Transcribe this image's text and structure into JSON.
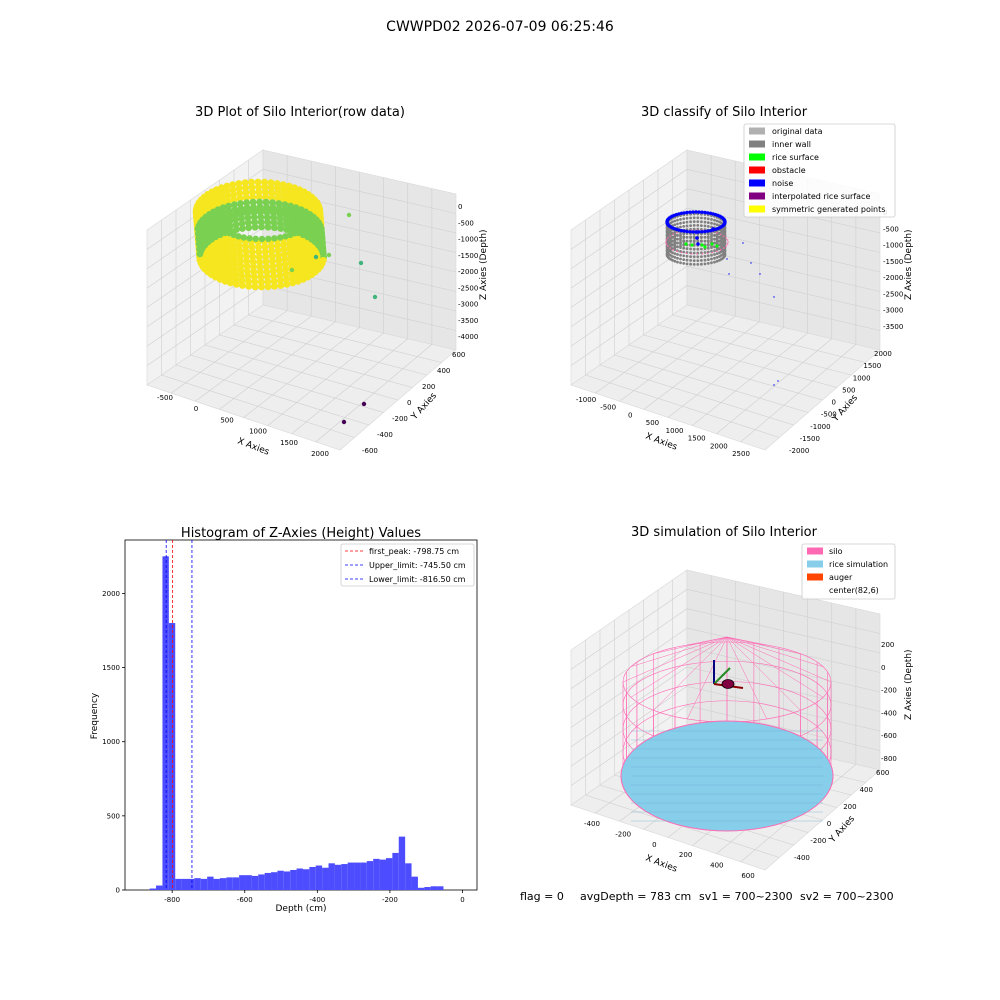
{
  "figure_title": "CWWPD02 2026-07-09 06:25:46",
  "status_line": {
    "flag": "flag = 0",
    "avg_depth": "avgDepth = 783 cm",
    "sv1": "sv1 = 700~2300",
    "sv2": "sv2 = 700~2300"
  },
  "colors": {
    "yellow": "#f5e61f",
    "green": "#7ad151",
    "teal": "#3fb47d",
    "purple": "#440154",
    "hist_bar": "#4d4dff",
    "first_peak_line": "#ff0000",
    "limit_line": "#0000ff",
    "silo": "#ff69b4",
    "rice": "#87ceeb",
    "auger": "#ff4500",
    "gray_wall": "#808080",
    "noise": "#0000ff",
    "rice_surface": "#00ff00"
  },
  "chart_data": [
    {
      "type": "scatter",
      "projection": "3d",
      "title": "3D Plot of Silo Interior(row data)",
      "xlabel": "X Axies",
      "ylabel": "Y Axies",
      "zlabel": "Z Axies (Depth)",
      "x_ticks": [
        "-500",
        "0",
        "500",
        "1000",
        "1500",
        "2000"
      ],
      "y_ticks": [
        "-600",
        "-400",
        "-200",
        "0",
        "200",
        "400",
        "600"
      ],
      "z_ticks": [
        "0",
        "-500",
        "-1000",
        "-1500",
        "-2000",
        "-2500",
        "-3000",
        "-3500",
        "-4000"
      ],
      "outliers": [
        {
          "x": 1350,
          "y": 250,
          "z": -700
        },
        {
          "x": 1450,
          "y": 150,
          "z": -1500
        },
        {
          "x": 1550,
          "y": 100,
          "z": -1450
        },
        {
          "x": 1700,
          "y": 120,
          "z": -1550
        },
        {
          "x": 1900,
          "y": 50,
          "z": -2700
        },
        {
          "x": 1500,
          "y": -600,
          "z": -3800
        },
        {
          "x": 1700,
          "y": -600,
          "z": -3500
        }
      ]
    },
    {
      "type": "scatter",
      "projection": "3d",
      "title": "3D classify of Silo Interior",
      "xlabel": "X Axies",
      "ylabel": "Y Axies",
      "zlabel": "Z Axies (Depth)",
      "x_ticks": [
        "-1000",
        "-500",
        "0",
        "500",
        "1000",
        "1500",
        "2000",
        "2500"
      ],
      "y_ticks": [
        "-2000",
        "-1500",
        "-1000",
        "-500",
        "0",
        "500",
        "1000",
        "1500",
        "2000"
      ],
      "z_ticks": [
        "0",
        "-500",
        "-1000",
        "-1500",
        "-2000",
        "-2500",
        "-3000",
        "-3500"
      ],
      "legend_location": "upper right",
      "legend": [
        {
          "label": "original data",
          "color": "#b0b0b0"
        },
        {
          "label": "inner wall",
          "color": "#808080"
        },
        {
          "label": "rice surface",
          "color": "#00ff00"
        },
        {
          "label": "obstacle",
          "color": "#ff0000"
        },
        {
          "label": "noise",
          "color": "#0000ff"
        },
        {
          "label": "interpolated rice surface",
          "color": "#800080"
        },
        {
          "label": "symmetric generated points",
          "color": "#ffff00"
        }
      ]
    },
    {
      "type": "bar",
      "title": "Histogram of Z-Axies (Height) Values",
      "xlabel": "Depth (cm)",
      "ylabel": "Frequency",
      "xlim": [
        -930,
        40
      ],
      "ylim": [
        0,
        2360
      ],
      "x_ticks": [
        -800,
        -600,
        -400,
        -200,
        0
      ],
      "y_ticks": [
        0,
        500,
        1000,
        1500,
        2000
      ],
      "bin_width": 17.6,
      "bin_edges_start": -862,
      "values": [
        10,
        30,
        2250,
        1800,
        75,
        75,
        75,
        80,
        75,
        90,
        75,
        80,
        85,
        85,
        100,
        100,
        95,
        105,
        115,
        120,
        130,
        125,
        135,
        145,
        140,
        155,
        165,
        150,
        180,
        170,
        175,
        185,
        185,
        185,
        195,
        210,
        205,
        215,
        250,
        360,
        180,
        90,
        15,
        20,
        25,
        25
      ],
      "vlines": [
        {
          "x": -798.75,
          "label": "first_peak: -798.75 cm",
          "color": "#ff0000"
        },
        {
          "x": -745.5,
          "label": "Upper_limit: -745.50 cm",
          "color": "#0000ff"
        },
        {
          "x": -816.5,
          "label": "Lower_limit: -816.50 cm",
          "color": "#0000ff"
        }
      ],
      "legend_location": "upper right"
    },
    {
      "type": "3d-surface",
      "title": "3D simulation of Silo Interior",
      "xlabel": "X Axies",
      "ylabel": "Y Axies",
      "zlabel": "Z Axies (Depth)",
      "x_ticks": [
        "-400",
        "-200",
        "0",
        "200",
        "400",
        "600"
      ],
      "y_ticks": [
        "-400",
        "-200",
        "0",
        "200",
        "400",
        "600"
      ],
      "z_ticks": [
        "200",
        "0",
        "-200",
        "-400",
        "-600",
        "-800"
      ],
      "legend_location": "upper right",
      "legend": [
        {
          "label": "silo",
          "color": "#ff69b4"
        },
        {
          "label": "rice simulation",
          "color": "#87ceeb"
        },
        {
          "label": "auger",
          "color": "#ff4500"
        },
        {
          "label": "center(82,6)",
          "color": ""
        }
      ]
    }
  ]
}
